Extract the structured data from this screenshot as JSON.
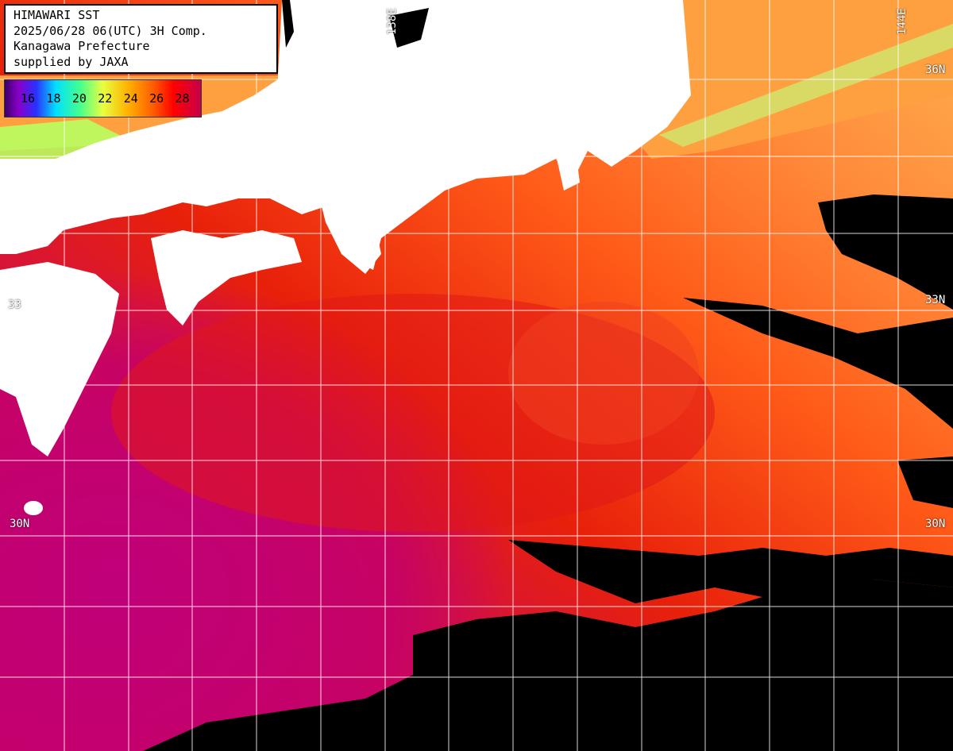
{
  "header": {
    "line1": "HIMAWARI SST",
    "line2": "2025/06/28 06(UTC) 3H Comp.",
    "line3": "Kanagawa Prefecture",
    "line4": "supplied by JAXA"
  },
  "legend": {
    "ticks": [
      "16",
      "18",
      "20",
      "22",
      "24",
      "26",
      "28"
    ]
  },
  "coordinates": {
    "lat_36_right": "36N",
    "lat_33_right": "33N",
    "lat_30_left": "30N",
    "lat_30_right": "30N",
    "lat_33_left": "33",
    "lon_138": "138E",
    "lon_144": "144E"
  },
  "colors": {
    "land": "#ffffff",
    "no_data": "#000000",
    "grid": "#ffffff",
    "sst_warmest": "#c0006a",
    "sst_hot": "#e8200a",
    "sst_warm": "#ff7a20",
    "sst_mild": "#ffb050",
    "sst_cool": "#7cf06a"
  }
}
